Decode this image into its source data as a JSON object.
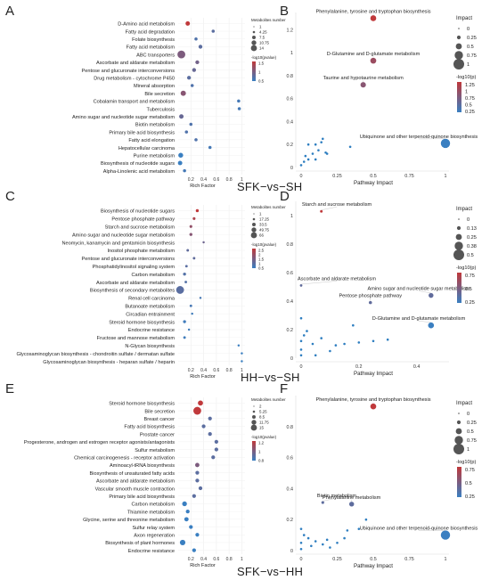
{
  "panels": {
    "A": "A",
    "B": "B",
    "C": "C",
    "D": "D",
    "E": "E",
    "F": "F"
  },
  "comparisons": [
    "SFK−vs−SH",
    "HH−vs−SH",
    "SFK−vs−HH"
  ],
  "legend_text": {
    "metabolites_number": "Metabolites number",
    "neglog_p": "-log10(pvalue)",
    "impact": "Impact",
    "neglog10p": "-log10(p)"
  },
  "colors": {
    "high": "#c0393b",
    "low": "#3a7fc1",
    "dot": "#2e7ec0",
    "point": "#4a4a4a"
  },
  "chart_data": [
    {
      "type": "scatter",
      "panel": "A",
      "xlabel": "Rich Factor",
      "xticks": [
        "0.2",
        "0.4",
        "0.6",
        "0.8",
        "1"
      ],
      "xlim": [
        0,
        1.05
      ],
      "size_legend": [
        "1",
        "4.25",
        "7.5",
        "10.75",
        "14"
      ],
      "color_legend": [
        "1.5",
        "1",
        "0.5"
      ],
      "categories": [
        "D-Amino acid metabolism",
        "Fatty acid degradation",
        "Folate biosynthesis",
        "Fatty acid metabolism",
        "ABC transporters",
        "Ascorbate and aldarate metabolism",
        "Pentose and glucuronate interconversions",
        "Drug metabolism - cytochrome P450",
        "Mineral absorption",
        "Bile secretion",
        "Cobalamin transport and metabolism",
        "Tuberculosis",
        "Amino sugar and nucleotide sugar metabolism",
        "Biotin metabolism",
        "Primary bile acid biosynthesis",
        "Fatty acid elongation",
        "Hepatocellular carcinoma",
        "Purine metabolism",
        "Biosynthesis of nucleotide sugars",
        "Alpha-Linolenic acid metabolism"
      ],
      "values": [
        0.15,
        0.55,
        0.28,
        0.35,
        0.05,
        0.3,
        0.25,
        0.17,
        0.22,
        0.08,
        0.95,
        0.96,
        0.05,
        0.2,
        0.13,
        0.28,
        0.5,
        0.04,
        0.03,
        0.1
      ],
      "counts": [
        3,
        1,
        1,
        2,
        14,
        2,
        2,
        2,
        1,
        5,
        1,
        1,
        3,
        1,
        1,
        1,
        1,
        4,
        3,
        1
      ],
      "pvalue": [
        1.5,
        0.6,
        0.5,
        0.6,
        0.9,
        0.8,
        0.7,
        0.6,
        0.5,
        1.0,
        0.4,
        0.4,
        0.7,
        0.5,
        0.5,
        0.5,
        0.4,
        0.3,
        0.3,
        0.4
      ]
    },
    {
      "type": "scatter",
      "panel": "B",
      "xlabel": "Pathway Impact",
      "ylabel": "",
      "xlim": [
        0,
        1
      ],
      "ylim": [
        0,
        1.35
      ],
      "xticks": [
        "0",
        "0.25",
        "0.5",
        "0.75",
        "1"
      ],
      "yticks": [
        "0",
        "0.2",
        "0.4",
        "0.6",
        "0.8",
        "1",
        "1.2"
      ],
      "impact_legend": [
        "0",
        "0.25",
        "0.5",
        "0.75",
        "1"
      ],
      "color_legend": [
        "1.25",
        "1",
        "0.75",
        "0.5",
        "0.25"
      ],
      "labeled_points": [
        {
          "name": "Phenylalanine, tyrosine and tryptophan biosynthesis",
          "x": 0.5,
          "y": 1.3,
          "impact": 0.5,
          "p": 1.3
        },
        {
          "name": "D-Glutamine and D-glutamate metabolism",
          "x": 0.5,
          "y": 0.93,
          "impact": 0.5,
          "p": 1.0
        },
        {
          "name": "Taurine and hypotaurine metabolism",
          "x": 0.43,
          "y": 0.72,
          "impact": 0.43,
          "p": 0.85
        },
        {
          "name": "Ubiquinone and other terpenoid-quinone biosynthesis",
          "x": 1.0,
          "y": 0.21,
          "impact": 1.0,
          "p": 0.2
        }
      ],
      "points": [
        [
          0.0,
          0.02
        ],
        [
          0.02,
          0.05
        ],
        [
          0.05,
          0.07
        ],
        [
          0.03,
          0.1
        ],
        [
          0.08,
          0.12
        ],
        [
          0.1,
          0.2
        ],
        [
          0.12,
          0.15
        ],
        [
          0.15,
          0.25
        ],
        [
          0.17,
          0.13
        ],
        [
          0.18,
          0.12
        ],
        [
          0.05,
          0.2
        ],
        [
          0.1,
          0.07
        ],
        [
          0.14,
          0.22
        ],
        [
          0.34,
          0.18
        ]
      ]
    },
    {
      "type": "scatter",
      "panel": "C",
      "xlabel": "Rich Factor",
      "xticks": [
        "0.2",
        "0.4",
        "0.6",
        "0.8",
        "1"
      ],
      "xlim": [
        0,
        1.05
      ],
      "size_legend": [
        "1",
        "17.25",
        "33.5",
        "49.75",
        "66"
      ],
      "color_legend": [
        "2.5",
        "2",
        "1.5",
        "1",
        "0.5"
      ],
      "categories": [
        "Biosynthesis of nucleotide sugars",
        "Pentose phosphate pathway",
        "Starch and sucrose metabolism",
        "Amino sugar and nucleotide sugar metabolism",
        "Neomycin, kanamycin and gentamicin biosynthesis",
        "Inositol phosphate metabolism",
        "Pentose and glucuronate interconversions",
        "Phosphatidylinositol signaling system",
        "Carbon metabolism",
        "Ascorbate and aldarate metabolism",
        "Biosynthesis of secondary metabolites",
        "Renal cell carcinoma",
        "Butanoate metabolism",
        "Circadian entrainment",
        "Steroid hormone biosynthesis",
        "Endocrine resistance",
        "Fructose and mannose metabolism",
        "N-Glycan biosynthesis",
        "Glycosaminoglycan biosynthesis - chondroitin sulfate / dermatan sulfate",
        "Glycosaminoglycan biosynthesis - heparan sulfate / heparin"
      ],
      "values": [
        0.3,
        0.25,
        0.2,
        0.2,
        0.4,
        0.15,
        0.25,
        0.13,
        0.1,
        0.12,
        0.03,
        0.35,
        0.2,
        0.22,
        0.1,
        0.17,
        0.1,
        0.95,
        1.0,
        1.0
      ],
      "counts": [
        4,
        3,
        3,
        4,
        1,
        2,
        2,
        2,
        4,
        2,
        66,
        1,
        2,
        1,
        4,
        1,
        2,
        1,
        1,
        1
      ],
      "pvalue": [
        2.5,
        2.2,
        1.8,
        1.6,
        1.2,
        1.0,
        1.0,
        0.9,
        0.8,
        0.8,
        0.9,
        0.6,
        0.6,
        0.5,
        0.5,
        0.5,
        0.5,
        0.4,
        0.4,
        0.4
      ]
    },
    {
      "type": "scatter",
      "panel": "D",
      "xlabel": "Pathway Impact",
      "ylabel": "",
      "xlim": [
        0,
        0.5
      ],
      "ylim": [
        0,
        1.1
      ],
      "xticks": [
        "0",
        "0.2",
        "0.4"
      ],
      "yticks": [
        "0",
        "0.2",
        "0.4",
        "0.6",
        "0.8",
        "1"
      ],
      "impact_legend": [
        "0",
        "0.13",
        "0.25",
        "0.38",
        "0.5"
      ],
      "color_legend": [
        "0.75",
        "0.5",
        "0.25"
      ],
      "labeled_points": [
        {
          "name": "Starch and sucrose metabolism",
          "x": 0.07,
          "y": 1.03,
          "impact": 0.02,
          "p": 0.9
        },
        {
          "name": "Ascorbate and aldarate metabolism",
          "x": 0.0,
          "y": 0.51,
          "impact": 0.0,
          "p": 0.4
        },
        {
          "name": "Pentose phosphate pathway",
          "x": 0.24,
          "y": 0.39,
          "impact": 0.1,
          "p": 0.4
        },
        {
          "name": "Amino sugar and nucleotide sugar metabolism",
          "x": 0.45,
          "y": 0.44,
          "impact": 0.35,
          "p": 0.4
        },
        {
          "name": "D-Glutamine and D-glutamate metabolism",
          "x": 0.45,
          "y": 0.23,
          "impact": 0.5,
          "p": 0.2
        }
      ],
      "points": [
        [
          0.0,
          0.02
        ],
        [
          0.0,
          0.06
        ],
        [
          0.0,
          0.12
        ],
        [
          0.01,
          0.16
        ],
        [
          0.02,
          0.19
        ],
        [
          0.0,
          0.28
        ],
        [
          0.04,
          0.1
        ],
        [
          0.07,
          0.14
        ],
        [
          0.1,
          0.05
        ],
        [
          0.12,
          0.09
        ],
        [
          0.15,
          0.1
        ],
        [
          0.18,
          0.23
        ],
        [
          0.2,
          0.11
        ],
        [
          0.25,
          0.12
        ],
        [
          0.3,
          0.13
        ],
        [
          0.05,
          0.02
        ]
      ]
    },
    {
      "type": "scatter",
      "panel": "E",
      "xlabel": "Rich Factor",
      "xticks": [
        "0.2",
        "0.4",
        "0.6",
        "0.8",
        "1"
      ],
      "xlim": [
        0,
        1.05
      ],
      "size_legend": [
        "2",
        "5.25",
        "8.5",
        "11.75",
        "15"
      ],
      "color_legend": [
        "1.2",
        "1",
        "0.8"
      ],
      "categories": [
        "Steroid hormone biosynthesis",
        "Bile secretion",
        "Breast cancer",
        "Fatty acid biosynthesis",
        "Prostate cancer",
        "Progesterone, androgen and estrogen receptor agonists/antagonists",
        "Sulfur metabolism",
        "Chemical carcinogenesis - receptor activation",
        "Aminoacyl-tRNA biosynthesis",
        "Biosynthesis of unsaturated fatty acids",
        "Ascorbate and aldarate metabolism",
        "Vascular smooth muscle contraction",
        "Primary bile acid biosynthesis",
        "Carbon metabolism",
        "Thiamine metabolism",
        "Glycine, serine and threonine metabolism",
        "Sulfur relay system",
        "Axon regeneration",
        "Biosynthesis of plant hormones",
        "Endocrine resistance"
      ],
      "values": [
        0.35,
        0.3,
        0.5,
        0.4,
        0.5,
        0.6,
        0.6,
        0.55,
        0.3,
        0.3,
        0.3,
        0.35,
        0.25,
        0.1,
        0.15,
        0.13,
        0.2,
        0.3,
        0.07,
        0.25
      ],
      "counts": [
        5,
        15,
        2,
        2,
        2,
        2,
        2,
        2,
        3,
        2,
        2,
        2,
        2,
        4,
        2,
        3,
        2,
        2,
        6,
        2
      ],
      "pvalue": [
        1.2,
        1.2,
        0.9,
        0.9,
        0.9,
        0.9,
        0.9,
        0.9,
        1.0,
        0.9,
        0.9,
        0.9,
        0.9,
        0.8,
        0.8,
        0.8,
        0.8,
        0.8,
        0.8,
        0.8
      ]
    },
    {
      "type": "scatter",
      "panel": "F",
      "xlabel": "Pathway Impact",
      "ylabel": "",
      "xlim": [
        0,
        1
      ],
      "ylim": [
        0,
        1.0
      ],
      "xticks": [
        "0",
        "0.25",
        "0.5",
        "0.75",
        "1"
      ],
      "yticks": [
        "0",
        "0.2",
        "0.4",
        "0.6",
        "0.8"
      ],
      "impact_legend": [
        "0",
        "0.25",
        "0.5",
        "0.75",
        "1"
      ],
      "color_legend": [
        "0.75",
        "0.5",
        "0.25"
      ],
      "labeled_points": [
        {
          "name": "Phenylalanine, tyrosine and tryptophan biosynthesis",
          "x": 0.5,
          "y": 0.93,
          "impact": 0.5,
          "p": 0.9
        },
        {
          "name": "Biotin metabolism",
          "x": 0.15,
          "y": 0.31,
          "impact": 0.05,
          "p": 0.35
        },
        {
          "name": "Phenylalanine metabolism",
          "x": 0.35,
          "y": 0.3,
          "impact": 0.35,
          "p": 0.35
        },
        {
          "name": "Ubiquinone and other terpenoid-quinone biosynthesis",
          "x": 1.0,
          "y": 0.1,
          "impact": 1.0,
          "p": 0.15
        }
      ],
      "points": [
        [
          0.0,
          0.01
        ],
        [
          0.0,
          0.05
        ],
        [
          0.02,
          0.1
        ],
        [
          0.05,
          0.08
        ],
        [
          0.07,
          0.03
        ],
        [
          0.1,
          0.06
        ],
        [
          0.15,
          0.04
        ],
        [
          0.18,
          0.07
        ],
        [
          0.2,
          0.02
        ],
        [
          0.25,
          0.05
        ],
        [
          0.3,
          0.08
        ],
        [
          0.32,
          0.13
        ],
        [
          0.4,
          0.14
        ],
        [
          0.45,
          0.2
        ],
        [
          0.0,
          0.14
        ]
      ]
    }
  ]
}
